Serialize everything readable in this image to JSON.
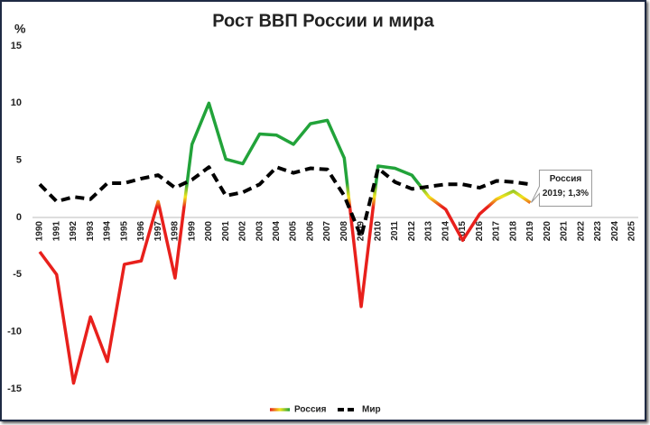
{
  "chart_data": {
    "type": "line",
    "title": "Рост ВВП России и мира",
    "ylabel": "%",
    "categories": [
      "1990",
      "1991",
      "1992",
      "1993",
      "1994",
      "1995",
      "1996",
      "1997",
      "1998",
      "1999",
      "2000",
      "2001",
      "2002",
      "2003",
      "2004",
      "2005",
      "2006",
      "2007",
      "2008",
      "2009",
      "2010",
      "2011",
      "2012",
      "2013",
      "2014",
      "2015",
      "2016",
      "2017",
      "2018",
      "2019",
      "2020",
      "2021",
      "2022",
      "2023",
      "2024",
      "2025"
    ],
    "series": [
      {
        "name": "Россия",
        "colors": [
          "#22a33a",
          "#f2e51c",
          "#e8201c"
        ],
        "values": [
          -3.0,
          -5.0,
          -14.5,
          -8.7,
          -12.6,
          -4.1,
          -3.8,
          1.4,
          -5.3,
          6.4,
          10.0,
          5.1,
          4.7,
          7.3,
          7.2,
          6.4,
          8.2,
          8.5,
          5.2,
          -7.8,
          4.5,
          4.3,
          3.7,
          1.8,
          0.7,
          -2.0,
          0.3,
          1.6,
          2.3,
          1.3,
          null,
          null,
          null,
          null,
          null,
          null
        ]
      },
      {
        "name": "Мир",
        "color": "#000000",
        "dashed": true,
        "values": [
          2.9,
          1.4,
          1.8,
          1.6,
          3.0,
          3.0,
          3.4,
          3.7,
          2.6,
          3.3,
          4.4,
          1.9,
          2.2,
          2.9,
          4.4,
          3.9,
          4.3,
          4.2,
          1.9,
          -1.7,
          4.3,
          3.1,
          2.5,
          2.7,
          2.9,
          2.9,
          2.6,
          3.2,
          3.1,
          2.9,
          null,
          null,
          null,
          null,
          null,
          null
        ]
      }
    ],
    "annotation": [
      "Россия",
      "2019; 1,3%"
    ],
    "ylim": [
      -15,
      15
    ],
    "yticks": [
      -15,
      -10,
      -5,
      0,
      5,
      10,
      15
    ],
    "grid": false,
    "legend": "bottom"
  }
}
